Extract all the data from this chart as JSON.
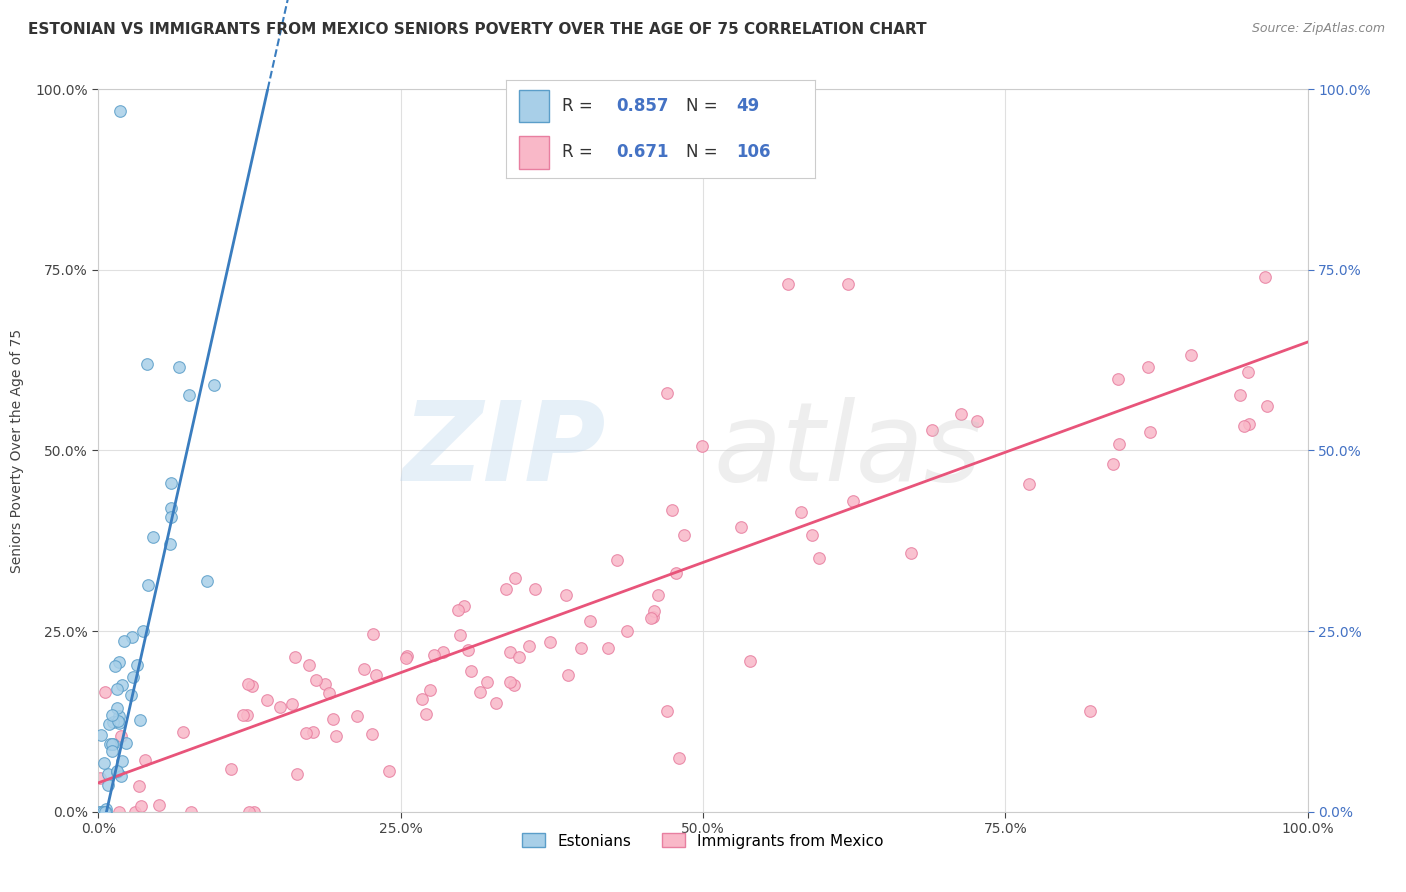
{
  "title": "ESTONIAN VS IMMIGRANTS FROM MEXICO SENIORS POVERTY OVER THE AGE OF 75 CORRELATION CHART",
  "source": "Source: ZipAtlas.com",
  "ylabel": "Seniors Poverty Over the Age of 75",
  "r_estonian": 0.857,
  "n_estonian": 49,
  "r_mexico": 0.671,
  "n_mexico": 106,
  "blue_color": "#a8cfe8",
  "blue_edge_color": "#5b9ec9",
  "pink_color": "#f9b8c8",
  "pink_edge_color": "#e87fa0",
  "blue_line_color": "#3a7dbf",
  "pink_line_color": "#e8547a",
  "right_tick_color": "#4472c4",
  "title_fontsize": 11,
  "tick_fontsize": 10,
  "legend_fontsize": 12,
  "source_fontsize": 9
}
